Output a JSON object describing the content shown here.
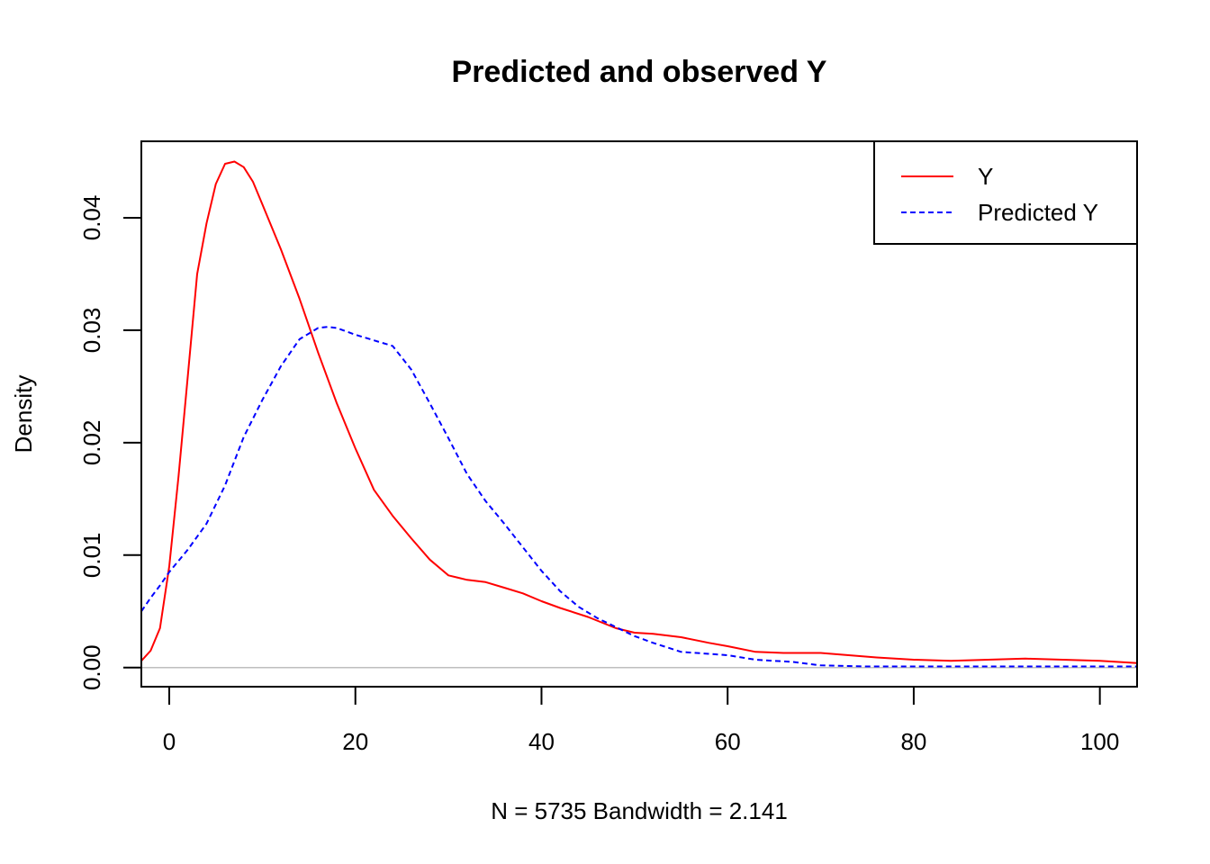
{
  "chart_data": {
    "type": "line",
    "title": "Predicted and observed Y",
    "xlabel": "N = 5735   Bandwidth = 2.141",
    "ylabel": "Density",
    "xlim": [
      -3,
      104
    ],
    "ylim": [
      -0.0017,
      0.0468
    ],
    "x_ticks": [
      0,
      20,
      40,
      60,
      80,
      100
    ],
    "x_tick_labels": [
      "0",
      "20",
      "40",
      "60",
      "80",
      "100"
    ],
    "y_ticks": [
      0,
      0.01,
      0.02,
      0.03,
      0.04
    ],
    "y_tick_labels": [
      "0.00",
      "0.01",
      "0.02",
      "0.03",
      "0.04"
    ],
    "legend": {
      "position": "top-right"
    },
    "zero_line": {
      "y": 0,
      "color": "#bebebe"
    },
    "series": [
      {
        "name": "Y",
        "color": "#ff0000",
        "dash": "solid",
        "x": [
          -3,
          -2,
          -1,
          0,
          1,
          2,
          3,
          4,
          5,
          6,
          7,
          8,
          9,
          10,
          12,
          14,
          16,
          18,
          20,
          22,
          24,
          26,
          28,
          30,
          32,
          34,
          36,
          38,
          40,
          42,
          45,
          48,
          50,
          52,
          55,
          58,
          60,
          63,
          66,
          70,
          73,
          76,
          80,
          84,
          88,
          92,
          96,
          100,
          104
        ],
        "y": [
          0.0006,
          0.0015,
          0.0035,
          0.009,
          0.017,
          0.026,
          0.035,
          0.0395,
          0.043,
          0.0448,
          0.045,
          0.0445,
          0.0432,
          0.0412,
          0.0372,
          0.0328,
          0.028,
          0.0235,
          0.0195,
          0.0158,
          0.0135,
          0.0115,
          0.0096,
          0.0082,
          0.0078,
          0.0076,
          0.0071,
          0.0066,
          0.0059,
          0.0053,
          0.0045,
          0.0035,
          0.0031,
          0.003,
          0.0027,
          0.0022,
          0.0019,
          0.0014,
          0.0013,
          0.0013,
          0.0011,
          0.0009,
          0.0007,
          0.0006,
          0.0007,
          0.0008,
          0.0007,
          0.0006,
          0.0004
        ]
      },
      {
        "name": "Predicted Y",
        "color": "#0000ff",
        "dash": "dashed",
        "x": [
          -3,
          -2,
          -1,
          0,
          2,
          4,
          6,
          8,
          10,
          12,
          14,
          16,
          17,
          18,
          20,
          22,
          24,
          26,
          28,
          30,
          32,
          34,
          36,
          38,
          40,
          42,
          44,
          46,
          48,
          50,
          52,
          55,
          60,
          63,
          67,
          70,
          75,
          80,
          85,
          90,
          95,
          100,
          104
        ],
        "y": [
          0.005,
          0.0062,
          0.0073,
          0.0085,
          0.0105,
          0.0128,
          0.0162,
          0.0205,
          0.0238,
          0.0268,
          0.0292,
          0.0302,
          0.0303,
          0.0302,
          0.0296,
          0.0291,
          0.0286,
          0.0265,
          0.0235,
          0.0204,
          0.0172,
          0.0148,
          0.0128,
          0.0107,
          0.0086,
          0.0068,
          0.0054,
          0.0044,
          0.0036,
          0.0028,
          0.0022,
          0.0014,
          0.0011,
          0.0007,
          0.0005,
          0.0002,
          0.0001,
          0.0001,
          0.0001,
          0.0001,
          0.0001,
          0.0001,
          0.0001
        ]
      }
    ]
  }
}
